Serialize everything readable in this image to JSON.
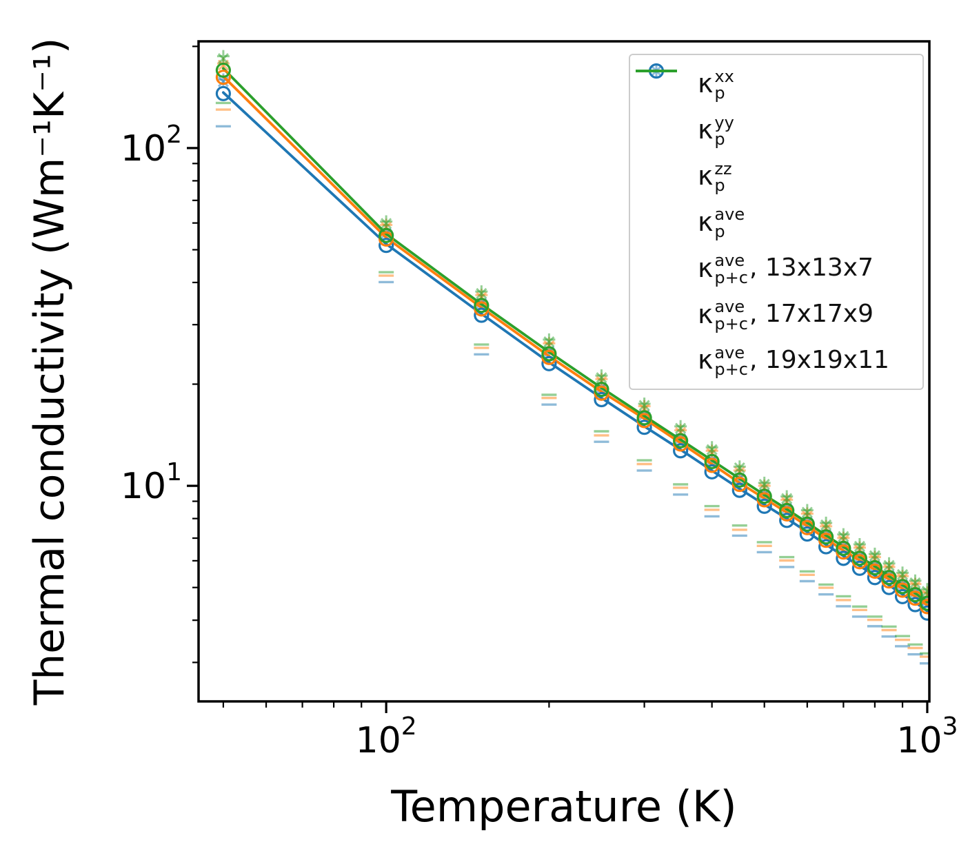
{
  "chart_data": {
    "type": "scatter",
    "title": "",
    "x_label": "Temperature (K)",
    "y_label": "Thermal conductivity (Wm⁻¹K⁻¹)",
    "x_scale": "log",
    "y_scale": "log",
    "x_range": [
      45,
      1009
    ],
    "y_range": [
      2.3,
      207
    ],
    "x_major_ticks": [
      {
        "value": 100,
        "base": "10",
        "exp": "2"
      },
      {
        "value": 1000,
        "base": "10",
        "exp": "3"
      }
    ],
    "x_minor_ticks": [
      50,
      60,
      70,
      80,
      90,
      200,
      300,
      400,
      500,
      600,
      700,
      800,
      900
    ],
    "y_major_ticks": [
      {
        "value": 10,
        "base": "10",
        "exp": "1"
      },
      {
        "value": 100,
        "base": "10",
        "exp": "2"
      }
    ],
    "y_minor_ticks": [
      3,
      4,
      5,
      6,
      7,
      8,
      9,
      20,
      30,
      40,
      50,
      60,
      70,
      80,
      90,
      200
    ],
    "marker_alpha": 0.5,
    "temperatures": [
      50,
      100,
      150,
      200,
      250,
      300,
      350,
      400,
      450,
      500,
      550,
      600,
      650,
      700,
      750,
      800,
      850,
      900,
      950,
      1000
    ],
    "grids": [
      {
        "name": "13x13x7",
        "color": "#1f77b4",
        "xx": [
          159.5,
          56.7,
          35.2,
          25.3,
          19.8,
          16.4,
          14.0,
          12.1,
          10.7,
          9.57,
          8.69,
          7.92,
          7.26,
          6.71,
          6.27,
          5.89,
          5.5,
          5.17,
          4.9,
          4.62
        ],
        "yy": [
          157.3,
          55.9,
          34.7,
          25.0,
          19.5,
          16.2,
          13.8,
          11.9,
          10.5,
          9.44,
          8.57,
          7.81,
          7.16,
          6.62,
          6.18,
          5.8,
          5.43,
          5.1,
          4.83,
          4.56
        ],
        "zz": [
          116,
          40.1,
          24.5,
          17.4,
          13.5,
          11.1,
          9.42,
          8.12,
          7.12,
          6.36,
          5.75,
          5.22,
          4.77,
          4.4,
          4.1,
          3.84,
          3.58,
          3.35,
          3.17,
          2.98
        ],
        "ave": [
          145,
          51.5,
          32.0,
          23.0,
          18.0,
          14.9,
          12.7,
          11.0,
          9.7,
          8.7,
          7.9,
          7.2,
          6.6,
          6.1,
          5.7,
          5.35,
          5.0,
          4.7,
          4.45,
          4.2
        ],
        "line": [
          146,
          52.0,
          32.3,
          23.2,
          18.2,
          15.0,
          12.8,
          11.1,
          9.8,
          8.8,
          8.0,
          7.3,
          6.7,
          6.2,
          5.79,
          5.43,
          5.08,
          4.77,
          4.52,
          4.26
        ]
      },
      {
        "name": "17x17x9",
        "color": "#ff7f0e",
        "xx": [
          178,
          59.2,
          36.7,
          26.4,
          20.7,
          17.2,
          14.6,
          12.7,
          11.1,
          10.0,
          9.09,
          8.27,
          7.59,
          7.01,
          6.56,
          6.15,
          5.75,
          5.4,
          5.12,
          4.83
        ],
        "yy": [
          176,
          58.4,
          36.2,
          26.0,
          20.4,
          16.9,
          14.4,
          12.5,
          11.0,
          9.86,
          8.96,
          8.16,
          7.49,
          6.91,
          6.47,
          6.07,
          5.67,
          5.33,
          5.05,
          4.76
        ],
        "zz": [
          130,
          41.9,
          25.6,
          18.2,
          14.1,
          11.6,
          9.87,
          8.49,
          7.41,
          6.64,
          6.01,
          5.45,
          4.99,
          4.59,
          4.29,
          4.01,
          3.74,
          3.5,
          3.31,
          3.12
        ],
        "ave": [
          162,
          53.8,
          33.4,
          24.0,
          18.8,
          15.6,
          13.3,
          11.5,
          10.1,
          9.09,
          8.26,
          7.52,
          6.9,
          6.37,
          5.96,
          5.59,
          5.23,
          4.91,
          4.65,
          4.39
        ],
        "line": [
          163,
          54.3,
          33.7,
          24.2,
          19.0,
          15.8,
          13.4,
          11.6,
          10.2,
          9.18,
          8.34,
          7.6,
          6.97,
          6.43,
          6.02,
          5.65,
          5.28,
          4.96,
          4.7,
          4.43
        ]
      },
      {
        "name": "19x19x11",
        "color": "#2ca02c",
        "xx": [
          187,
          60.6,
          37.6,
          27.1,
          21.2,
          17.5,
          15.0,
          13.0,
          11.4,
          10.2,
          9.3,
          8.47,
          7.77,
          7.18,
          6.71,
          6.29,
          5.89,
          5.53,
          5.24,
          4.94
        ],
        "yy": [
          184,
          59.8,
          37.1,
          26.7,
          20.9,
          17.3,
          14.8,
          12.8,
          11.3,
          10.1,
          9.17,
          8.35,
          7.66,
          7.08,
          6.62,
          6.21,
          5.81,
          5.46,
          5.16,
          4.87
        ],
        "zz": [
          136,
          42.9,
          26.2,
          18.6,
          14.5,
          11.9,
          10.1,
          8.71,
          7.63,
          6.81,
          6.15,
          5.58,
          5.1,
          4.71,
          4.39,
          4.1,
          3.83,
          3.59,
          3.39,
          3.19
        ],
        "ave": [
          170,
          55.1,
          34.2,
          24.6,
          19.3,
          15.9,
          13.6,
          11.8,
          10.4,
          9.31,
          8.45,
          7.7,
          7.06,
          6.53,
          6.1,
          5.72,
          5.35,
          5.03,
          4.76,
          4.49
        ],
        "line": [
          172,
          55.7,
          34.5,
          24.9,
          19.5,
          16.1,
          13.7,
          11.9,
          10.5,
          9.4,
          8.53,
          7.78,
          7.13,
          6.6,
          6.16,
          5.78,
          5.4,
          5.08,
          4.81,
          4.53
        ]
      }
    ],
    "legend": {
      "position": "upper right",
      "entries": [
        {
          "marker": "plus",
          "color": "#1f77b4",
          "alpha": 0.5,
          "kappa": "κ",
          "sup": "xx",
          "sub": "p",
          "suffix": ""
        },
        {
          "marker": "x",
          "color": "#1f77b4",
          "alpha": 0.5,
          "kappa": "κ",
          "sup": "yy",
          "sub": "p",
          "suffix": ""
        },
        {
          "marker": "hline",
          "color": "#1f77b4",
          "alpha": 0.5,
          "kappa": "κ",
          "sup": "zz",
          "sub": "p",
          "suffix": ""
        },
        {
          "marker": "circle",
          "color": "#1f77b4",
          "alpha": 1.0,
          "kappa": "κ",
          "sup": "ave",
          "sub": "p",
          "suffix": ""
        },
        {
          "marker": "line",
          "color": "#1f77b4",
          "alpha": 1.0,
          "kappa": "κ",
          "sup": "ave",
          "sub": "p+c",
          "suffix": ", 13x13x7"
        },
        {
          "marker": "line",
          "color": "#ff7f0e",
          "alpha": 1.0,
          "kappa": "κ",
          "sup": "ave",
          "sub": "p+c",
          "suffix": ", 17x17x9"
        },
        {
          "marker": "line",
          "color": "#2ca02c",
          "alpha": 1.0,
          "kappa": "κ",
          "sup": "ave",
          "sub": "p+c",
          "suffix": ", 19x19x11"
        }
      ]
    }
  }
}
